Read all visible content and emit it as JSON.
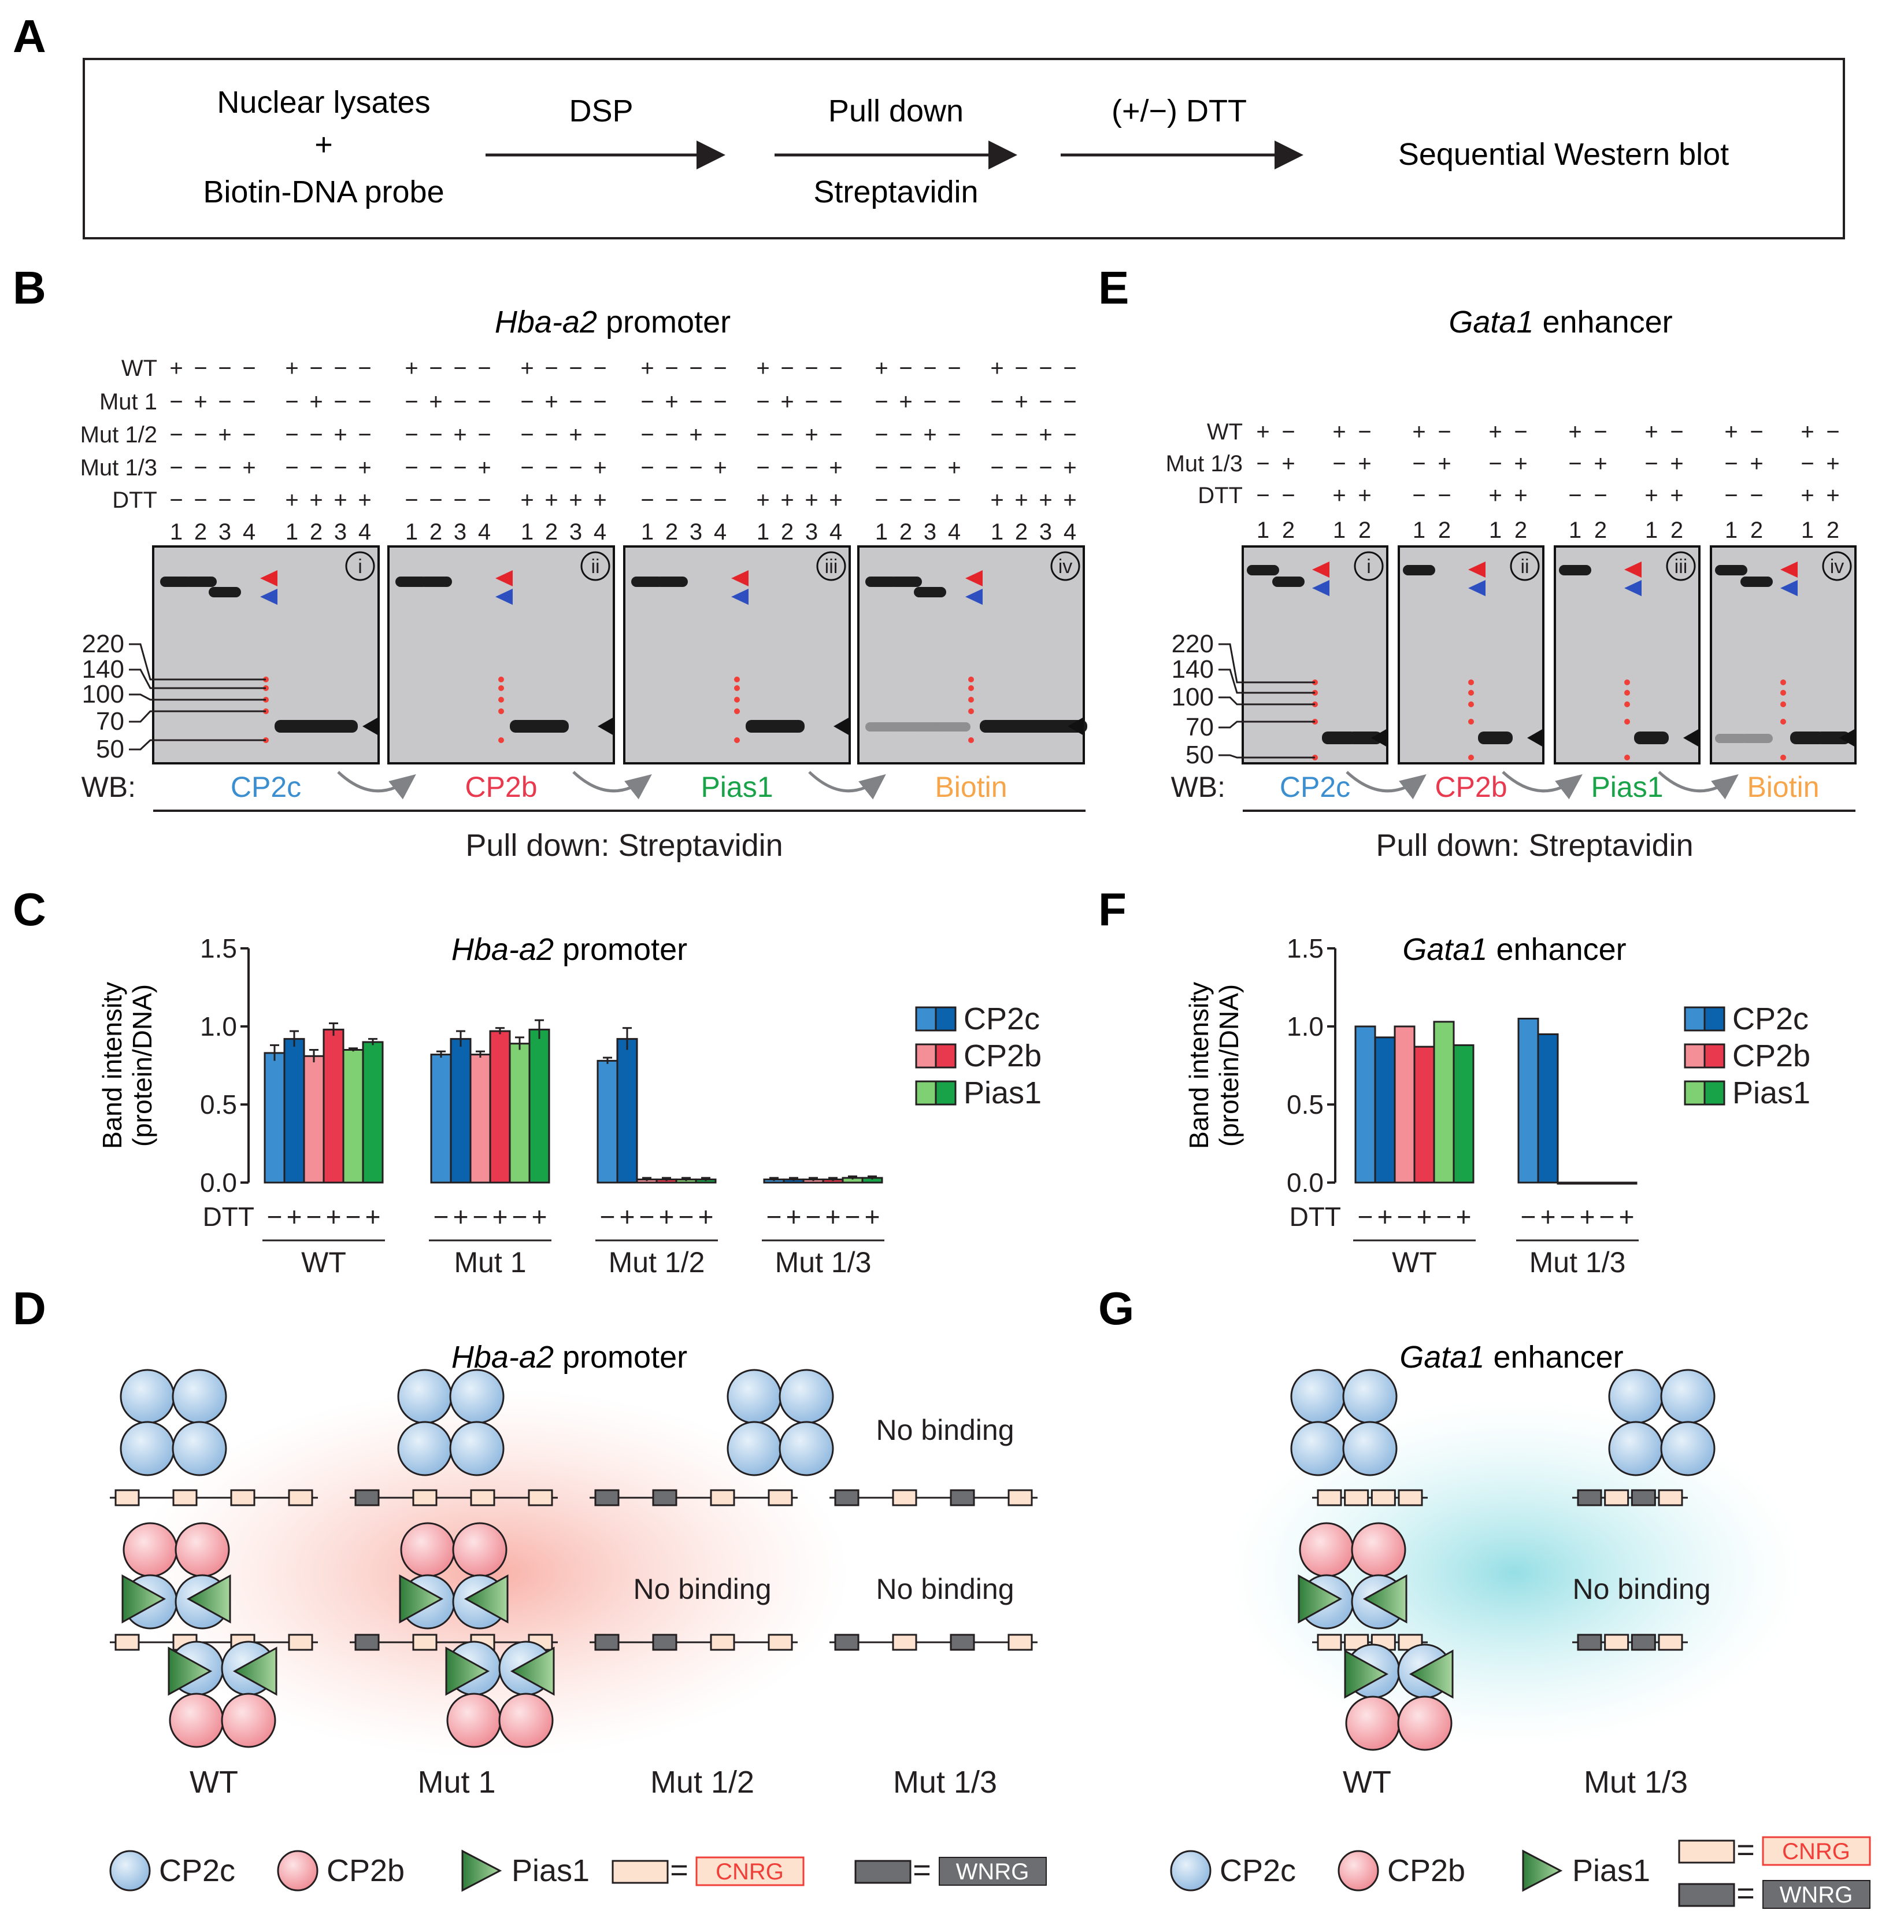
{
  "colors": {
    "cp2c": "#3b8fd0",
    "cp2c_dark": "#0b63ad",
    "cp2b": "#f48e97",
    "cp2b_dark": "#e8394f",
    "pias1": "#7fcf73",
    "pias1_dark": "#19a348",
    "biotin": "#f7a54a",
    "cnrg_fill": "#fde2cf",
    "wnrg_fill": "#6d6e71",
    "red_text": "#ef3f38"
  },
  "panel_labels": [
    "A",
    "B",
    "C",
    "D",
    "E",
    "F",
    "G"
  ],
  "panelA": {
    "step1_line1": "Nuclear lysates",
    "step1_plus": "+",
    "step1_line2": "Biotin-DNA probe",
    "arrow1": "DSP",
    "step2_top": "Pull down",
    "step2_bottom": "Streptavidin",
    "arrow3": "(+/−) DTT",
    "final": "Sequential Western blot"
  },
  "panelB": {
    "title_italic": "Hba-a2",
    "title_rest": " promoter",
    "row_labels": [
      "WT",
      "Mut 1",
      "Mut 1/2",
      "Mut 1/3",
      "DTT"
    ],
    "rows": [
      [
        "+",
        "−",
        "−",
        "−"
      ],
      [
        "−",
        "+",
        "−",
        "−"
      ],
      [
        "−",
        "−",
        "+",
        "−"
      ],
      [
        "−",
        "−",
        "−",
        "+"
      ]
    ],
    "dtt_minus": [
      "−",
      "−",
      "−",
      "−"
    ],
    "dtt_plus": [
      "+",
      "+",
      "+",
      "+"
    ],
    "lanes": [
      "1",
      "2",
      "3",
      "4"
    ],
    "markers": [
      "220",
      "140",
      "100",
      "70",
      "50"
    ],
    "blots": [
      "i",
      "ii",
      "iii",
      "iv"
    ],
    "wb_label": "WB:",
    "wb": [
      "CP2c",
      "CP2b",
      "Pias1",
      "Biotin"
    ],
    "pulldown": "Pull down: Streptavidin"
  },
  "panelE": {
    "title_italic": "Gata1",
    "title_rest": " enhancer",
    "row_labels": [
      "WT",
      "Mut 1/3",
      "DTT"
    ],
    "rows": [
      [
        "+",
        "−"
      ],
      [
        "−",
        "+"
      ]
    ],
    "dtt_minus": [
      "−",
      "−"
    ],
    "dtt_plus": [
      "+",
      "+"
    ],
    "lanes": [
      "1",
      "2"
    ],
    "markers": [
      "220",
      "140",
      "100",
      "70",
      "50"
    ],
    "blots": [
      "i",
      "ii",
      "iii",
      "iv"
    ],
    "wb_label": "WB:",
    "wb": [
      "CP2c",
      "CP2b",
      "Pias1",
      "Biotin"
    ],
    "pulldown": "Pull down: Streptavidin"
  },
  "panelD": {
    "title_italic": "Hba-a2",
    "title_rest": " promoter",
    "no_binding": "No binding",
    "groups": [
      "WT",
      "Mut 1",
      "Mut 1/2",
      "Mut 1/3"
    ]
  },
  "panelG": {
    "title_italic": "Gata1",
    "title_rest": " enhancer",
    "no_binding": "No binding",
    "groups": [
      "WT",
      "Mut 1/3"
    ]
  },
  "legend": {
    "cp2c": "CP2c",
    "cp2b": "CP2b",
    "pias1": "Pias1",
    "equals": "=",
    "cnrg": "CNRG",
    "wnrg": "WNRG"
  },
  "chart_data": [
    {
      "panel": "C",
      "type": "bar",
      "title": "Hba-a2 promoter",
      "ylabel_line1": "Band intensity",
      "ylabel_line2": "(protein/DNA)",
      "yticks": [
        "0.0",
        "0.5",
        "1.0",
        "1.5"
      ],
      "ylim": [
        0,
        1.5
      ],
      "dtt_label": "DTT",
      "dtt_pattern": [
        "−",
        "+",
        "−",
        "+",
        "−",
        "+"
      ],
      "groups": [
        "WT",
        "Mut 1",
        "Mut 1/2",
        "Mut 1/3"
      ],
      "legend": [
        "CP2c",
        "CP2b",
        "Pias1"
      ],
      "series": [
        {
          "name": "CP2c",
          "dtt": "−",
          "values": [
            0.83,
            0.82,
            0.78,
            0.02
          ],
          "errors": [
            0.05,
            0.02,
            0.02,
            0.01
          ]
        },
        {
          "name": "CP2c",
          "dtt": "+",
          "values": [
            0.92,
            0.92,
            0.92,
            0.02
          ],
          "errors": [
            0.05,
            0.05,
            0.07,
            0.01
          ]
        },
        {
          "name": "CP2b",
          "dtt": "−",
          "values": [
            0.81,
            0.82,
            0.02,
            0.02
          ],
          "errors": [
            0.04,
            0.02,
            0.01,
            0.01
          ]
        },
        {
          "name": "CP2b",
          "dtt": "+",
          "values": [
            0.98,
            0.97,
            0.02,
            0.02
          ],
          "errors": [
            0.04,
            0.02,
            0.01,
            0.01
          ]
        },
        {
          "name": "Pias1",
          "dtt": "−",
          "values": [
            0.85,
            0.89,
            0.02,
            0.03
          ],
          "errors": [
            0.01,
            0.04,
            0.01,
            0.01
          ]
        },
        {
          "name": "Pias1",
          "dtt": "+",
          "values": [
            0.9,
            0.98,
            0.02,
            0.03
          ],
          "errors": [
            0.02,
            0.06,
            0.01,
            0.01
          ]
        }
      ]
    },
    {
      "panel": "F",
      "type": "bar",
      "title": "Gata1 enhancer",
      "ylabel_line1": "Band intensity",
      "ylabel_line2": "(protein/DNA)",
      "yticks": [
        "0.0",
        "0.5",
        "1.0",
        "1.5"
      ],
      "ylim": [
        0,
        1.5
      ],
      "dtt_label": "DTT",
      "dtt_pattern": [
        "−",
        "+",
        "−",
        "+",
        "−",
        "+"
      ],
      "groups": [
        "WT",
        "Mut 1/3"
      ],
      "legend": [
        "CP2c",
        "CP2b",
        "Pias1"
      ],
      "series": [
        {
          "name": "CP2c",
          "dtt": "−",
          "values": [
            1.0,
            1.05
          ]
        },
        {
          "name": "CP2c",
          "dtt": "+",
          "values": [
            0.93,
            0.95
          ]
        },
        {
          "name": "CP2b",
          "dtt": "−",
          "values": [
            1.0,
            0.0
          ]
        },
        {
          "name": "CP2b",
          "dtt": "+",
          "values": [
            0.87,
            0.0
          ]
        },
        {
          "name": "Pias1",
          "dtt": "−",
          "values": [
            1.03,
            0.0
          ]
        },
        {
          "name": "Pias1",
          "dtt": "+",
          "values": [
            0.88,
            0.0
          ]
        }
      ]
    }
  ]
}
